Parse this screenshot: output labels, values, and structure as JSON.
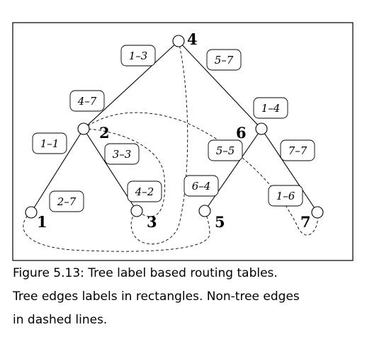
{
  "nodes": [
    {
      "id": "n4",
      "label": "4"
    },
    {
      "id": "n2",
      "label": "2"
    },
    {
      "id": "n6",
      "label": "6"
    },
    {
      "id": "n1",
      "label": "1"
    },
    {
      "id": "n3",
      "label": "3"
    },
    {
      "id": "n5",
      "label": "5"
    },
    {
      "id": "n7",
      "label": "7"
    }
  ],
  "tree_edges": [
    {
      "from": "4",
      "to": "2",
      "labels": [
        "1–3",
        "4–7"
      ]
    },
    {
      "from": "4",
      "to": "6",
      "labels": [
        "5–7",
        "1–4"
      ]
    },
    {
      "from": "2",
      "to": "1",
      "labels": [
        "1–1",
        "2–7"
      ]
    },
    {
      "from": "2",
      "to": "3",
      "labels": [
        "3–3",
        "4–2"
      ]
    },
    {
      "from": "6",
      "to": "5",
      "labels": [
        "5–5",
        "6–4"
      ]
    },
    {
      "from": "6",
      "to": "7",
      "labels": [
        "7–7",
        "1–6"
      ]
    }
  ],
  "caption": {
    "line1": "Figure 5.13: Tree label based routing tables.",
    "line2": "Tree edges labels in rectangles. Non-tree edges",
    "line3": "in dashed lines."
  }
}
